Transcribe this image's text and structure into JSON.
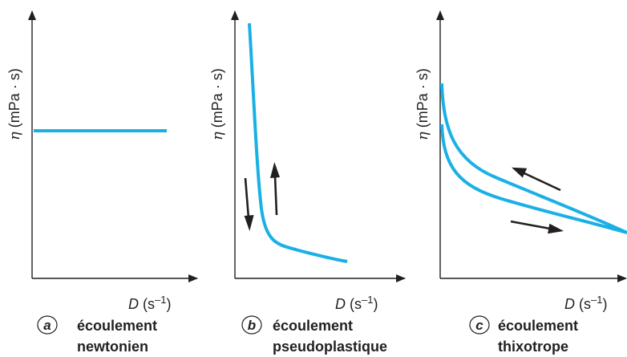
{
  "colors": {
    "curve": "#1ab0e6",
    "axis": "#231f20"
  },
  "y_axis_label": {
    "symbol": "η",
    "unit": "(mPa · s)"
  },
  "x_axis_label": {
    "symbol": "D",
    "unit": "(s",
    "exp": "–1",
    "close": ")"
  },
  "panels": [
    {
      "letter": "a",
      "title": "écoulement",
      "subtitle": "newtonien"
    },
    {
      "letter": "b",
      "title": "écoulement",
      "subtitle": "pseudoplastique"
    },
    {
      "letter": "c",
      "title": "écoulement",
      "subtitle": "thixotrope"
    }
  ],
  "arrows": {
    "b": [
      "down-arrow",
      "up-arrow"
    ],
    "c": [
      "upper-left-arrow",
      "lower-right-arrow"
    ]
  }
}
